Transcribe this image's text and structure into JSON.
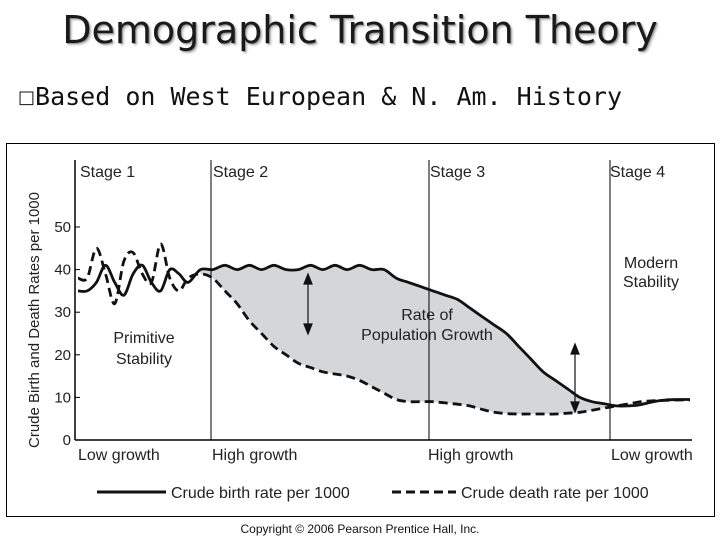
{
  "slide": {
    "title": "Demographic Transition Theory",
    "bullet_marker": "□",
    "bullet_text": "Based on West European & N. Am. History",
    "copyright": "Copyright © 2006 Pearson Prentice Hall, Inc."
  },
  "chart_data": {
    "type": "line",
    "ylabel": "Crude Birth and Death Rates per 1000",
    "ylim": [
      0,
      50
    ],
    "yticks": [
      "0",
      "10",
      "20",
      "30",
      "40",
      "50"
    ],
    "stages": [
      "Stage 1",
      "Stage 2",
      "Stage 3",
      "Stage 4"
    ],
    "growth_labels": [
      "Low growth",
      "High growth",
      "High growth",
      "Low growth"
    ],
    "annotations": {
      "primitive": [
        "Primitive",
        "Stability"
      ],
      "rate": [
        "Rate of",
        "Population Growth"
      ],
      "modern": [
        "Modern",
        "Stability"
      ]
    },
    "series": [
      {
        "name": "Crude birth rate per 1000",
        "style": "solid",
        "x": [
          0,
          1.5,
          3,
          4.5,
          6,
          7.5,
          9,
          10.5,
          12,
          13.5,
          15,
          16.5,
          18,
          20,
          22,
          24,
          26,
          28,
          30,
          32,
          34,
          36,
          38,
          40,
          42,
          44,
          46,
          48,
          50,
          52,
          54,
          56,
          58,
          60,
          62,
          64,
          66,
          68,
          70,
          72,
          74,
          76,
          78,
          80,
          82,
          84,
          86,
          88,
          90,
          92,
          94,
          96,
          98,
          100
        ],
        "y": [
          35,
          35,
          37,
          41,
          37,
          34,
          39,
          41,
          37,
          35,
          40,
          39,
          37,
          40,
          40,
          41,
          40,
          41,
          40,
          41,
          40,
          40,
          41,
          40,
          41,
          40,
          41,
          40,
          40,
          38,
          37,
          36,
          35,
          34,
          33,
          31,
          29,
          27,
          25,
          22,
          19,
          16,
          14,
          12,
          10,
          9,
          8.5,
          8,
          8,
          8.3,
          9,
          9.4,
          9.5,
          9.5
        ]
      },
      {
        "name": "Crude death rate per 1000",
        "style": "dashed",
        "x": [
          0,
          1.5,
          3,
          4.5,
          6,
          7.5,
          9,
          10.5,
          12,
          13.5,
          15,
          16.5,
          18,
          20,
          22,
          24,
          26,
          28,
          30,
          32,
          34,
          36,
          38,
          40,
          42,
          44,
          46,
          48,
          50,
          52,
          54,
          56,
          58,
          60,
          62,
          64,
          66,
          68,
          70,
          72,
          74,
          76,
          78,
          80,
          82,
          84,
          86,
          88,
          90,
          92,
          94,
          96,
          98,
          100
        ],
        "y": [
          38,
          38,
          45,
          39,
          32,
          42,
          44,
          39,
          37,
          46,
          38,
          35,
          38,
          39,
          38,
          35,
          32,
          28,
          25,
          22,
          20,
          18,
          17,
          16,
          15.5,
          15,
          14,
          12.5,
          11,
          9.5,
          9,
          9,
          9,
          8.7,
          8.4,
          8,
          7.2,
          6.5,
          6.2,
          6.1,
          6.1,
          6.1,
          6.1,
          6.3,
          6.5,
          7,
          7.5,
          8,
          8.5,
          9,
          9.2,
          9.3,
          9.4,
          9.4
        ]
      }
    ],
    "legend": [
      "Crude birth rate per 1000",
      "Crude death rate per 1000"
    ],
    "shade_color": "#d4d6d8",
    "legend_position": "bottom"
  }
}
